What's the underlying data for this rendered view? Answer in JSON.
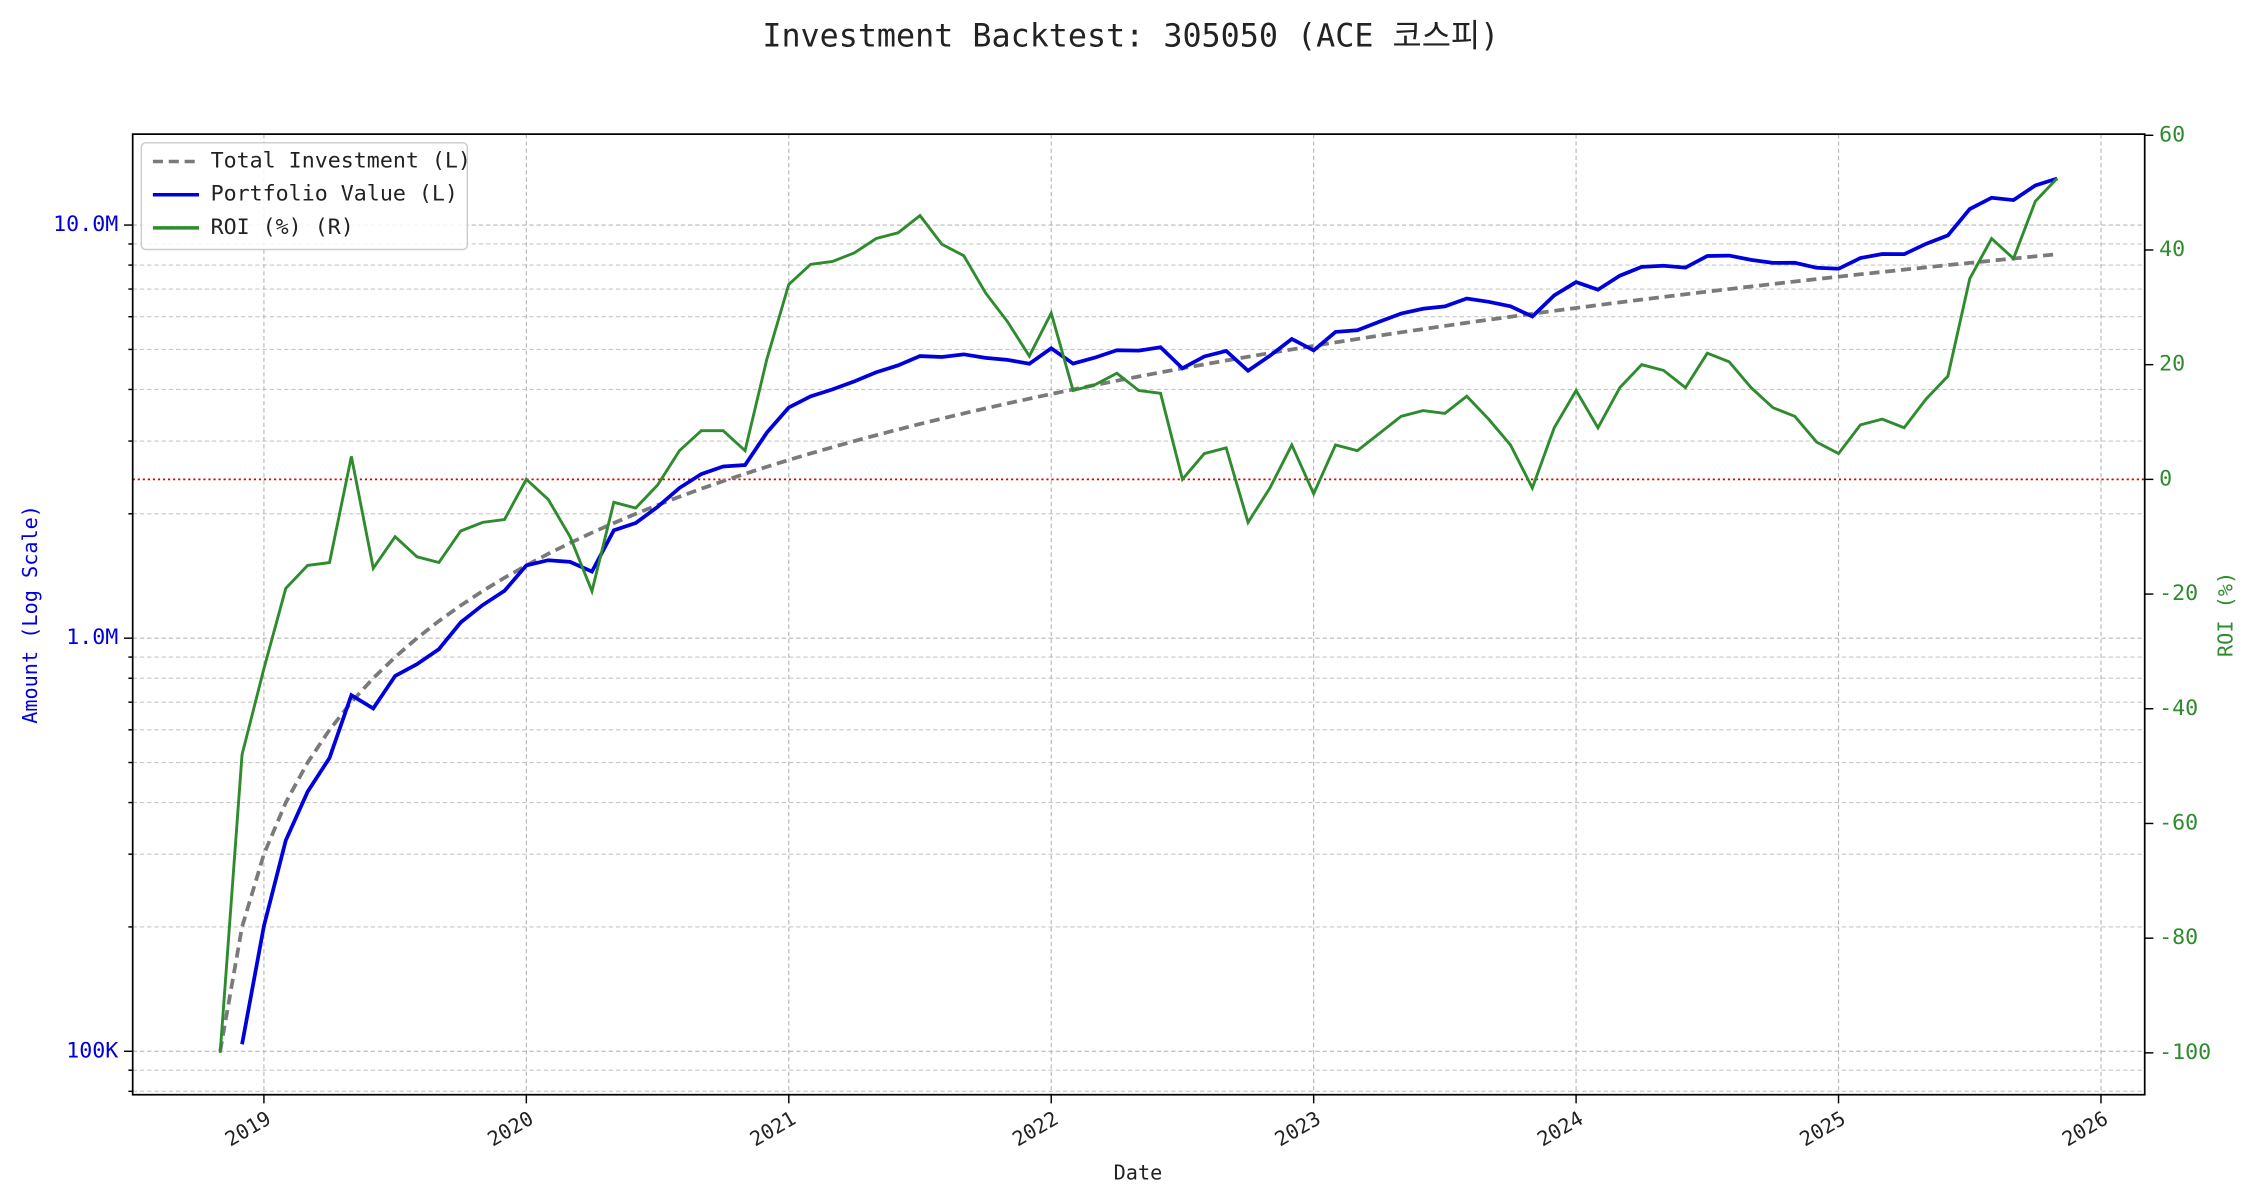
{
  "chart_data": {
    "type": "line",
    "title": "Investment Backtest: 305050 (ACE 코스피)",
    "x_label": "Date",
    "y_label": "Amount (Log Scale)",
    "y2_label": "ROI (%)",
    "log_y": true,
    "grid": true,
    "legend": "upper left",
    "x": [
      "2018-11",
      "2018-12",
      "2019-01",
      "2019-02",
      "2019-03",
      "2019-04",
      "2019-05",
      "2019-06",
      "2019-07",
      "2019-08",
      "2019-09",
      "2019-10",
      "2019-11",
      "2019-12",
      "2020-01",
      "2020-02",
      "2020-03",
      "2020-04",
      "2020-05",
      "2020-06",
      "2020-07",
      "2020-08",
      "2020-09",
      "2020-10",
      "2020-11",
      "2020-12",
      "2021-01",
      "2021-02",
      "2021-03",
      "2021-04",
      "2021-05",
      "2021-06",
      "2021-07",
      "2021-08",
      "2021-09",
      "2021-10",
      "2021-11",
      "2021-12",
      "2022-01",
      "2022-02",
      "2022-03",
      "2022-04",
      "2022-05",
      "2022-06",
      "2022-07",
      "2022-08",
      "2022-09",
      "2022-10",
      "2022-11",
      "2022-12",
      "2023-01",
      "2023-02",
      "2023-03",
      "2023-04",
      "2023-05",
      "2023-06",
      "2023-07",
      "2023-08",
      "2023-09",
      "2023-10",
      "2023-11",
      "2023-12",
      "2024-01",
      "2024-02",
      "2024-03",
      "2024-04",
      "2024-05",
      "2024-06",
      "2024-07",
      "2024-08",
      "2024-09",
      "2024-10",
      "2024-11",
      "2024-12",
      "2025-01",
      "2025-02",
      "2025-03",
      "2025-04",
      "2025-05",
      "2025-06",
      "2025-07",
      "2025-08",
      "2025-09",
      "2025-10",
      "2025-11"
    ],
    "xlim": [
      "2018-07",
      "2026-03"
    ],
    "xticks": [
      "2019",
      "2020",
      "2021",
      "2022",
      "2023",
      "2024",
      "2025",
      "2026"
    ],
    "ylim": [
      78500,
      16600000
    ],
    "yticks": [
      {
        "value": 100000,
        "label": "100K"
      },
      {
        "value": 1000000,
        "label": "1.0M"
      },
      {
        "value": 10000000,
        "label": "10.0M"
      }
    ],
    "yminorticks": [
      80000,
      90000,
      200000,
      300000,
      400000,
      500000,
      600000,
      700000,
      800000,
      900000,
      2000000,
      3000000,
      4000000,
      5000000,
      6000000,
      7000000,
      8000000,
      9000000
    ],
    "y2lim": [
      -107.3,
      60.2
    ],
    "y2ticks": [
      -100,
      -80,
      -60,
      -40,
      -20,
      0,
      20,
      40,
      60
    ],
    "reference_lines": [
      {
        "axis": "y2",
        "value": 0,
        "color": "#dd0000"
      }
    ],
    "series": [
      {
        "name": "Total Investment (L)",
        "color": "#7a7a7a",
        "linestyle": "dashed",
        "axis": "y",
        "values": [
          100000,
          200000,
          300000,
          400000,
          500000,
          600000,
          700000,
          800000,
          900000,
          1000000,
          1100000,
          1200000,
          1300000,
          1400000,
          1500000,
          1600000,
          1700000,
          1800000,
          1900000,
          2000000,
          2100000,
          2200000,
          2300000,
          2400000,
          2500000,
          2600000,
          2700000,
          2800000,
          2900000,
          3000000,
          3100000,
          3200000,
          3300000,
          3400000,
          3500000,
          3600000,
          3700000,
          3800000,
          3900000,
          4000000,
          4100000,
          4200000,
          4300000,
          4400000,
          4500000,
          4600000,
          4700000,
          4800000,
          4900000,
          5000000,
          5100000,
          5200000,
          5300000,
          5400000,
          5500000,
          5600000,
          5700000,
          5800000,
          5900000,
          6000000,
          6100000,
          6200000,
          6300000,
          6400000,
          6500000,
          6600000,
          6700000,
          6800000,
          6900000,
          7000000,
          7100000,
          7200000,
          7300000,
          7400000,
          7500000,
          7600000,
          7700000,
          7800000,
          7900000,
          8000000,
          8100000,
          8200000,
          8300000,
          8400000,
          8500000
        ]
      },
      {
        "name": "Portfolio Value (L)",
        "color": "#0000dd",
        "linestyle": "solid",
        "axis": "y",
        "values": [
          null,
          104000,
          201000,
          324000,
          425000,
          513000,
          728000,
          676000,
          810000,
          865000,
          940500,
          1092000,
          1202500,
          1302000,
          1500000,
          1544000,
          1530000,
          1449000,
          1824000,
          1900000,
          2079000,
          2310000,
          2495500,
          2604000,
          2625000,
          3146000,
          3618000,
          3850000,
          4002000,
          4185000,
          4402000,
          4576000,
          4818000,
          4794000,
          4865000,
          4770000,
          4717500,
          4617000,
          5031000,
          4620000,
          4776500,
          4977000,
          4966500,
          5060000,
          4500000,
          4807000,
          4958500,
          4440000,
          4826500,
          5300000,
          4972500,
          5512000,
          5565000,
          5832000,
          6105000,
          6272000,
          6355500,
          6641000,
          6519500,
          6360000,
          6008500,
          6758000,
          7276500,
          6976000,
          7540000,
          7920000,
          7973000,
          7888000,
          8418000,
          8435000,
          8236000,
          8100000,
          8103000,
          7881000,
          7837500,
          8322000,
          8508500,
          8502000,
          9006000,
          9440000,
          10935000,
          11644000,
          11495500,
          12474000,
          12962500
        ]
      },
      {
        "name": "ROI (%) (R)",
        "color": "#2e8b2e",
        "linestyle": "solid",
        "axis": "y2",
        "values": [
          -100,
          -48,
          -33,
          -19,
          -15,
          -14.5,
          4,
          -15.5,
          -10,
          -13.5,
          -14.5,
          -9,
          -7.5,
          -7,
          0,
          -3.5,
          -10,
          -19.5,
          -4,
          -5,
          -1,
          5,
          8.5,
          8.5,
          5,
          21,
          34,
          37.5,
          38,
          39.5,
          42,
          43,
          46,
          41,
          39,
          32.5,
          27.5,
          21.5,
          29,
          15.5,
          16.5,
          18.5,
          15.5,
          15,
          0,
          4.5,
          5.5,
          -7.5,
          -1.5,
          6,
          -2.5,
          6,
          5,
          8,
          11,
          12,
          11.5,
          14.5,
          10.5,
          6,
          -1.5,
          9,
          15.5,
          9,
          16,
          20,
          19,
          16,
          22,
          20.5,
          16,
          12.5,
          11,
          6.5,
          4.5,
          9.5,
          10.5,
          9,
          14,
          18,
          35,
          42,
          38.5,
          48.5,
          52.5
        ]
      }
    ]
  }
}
